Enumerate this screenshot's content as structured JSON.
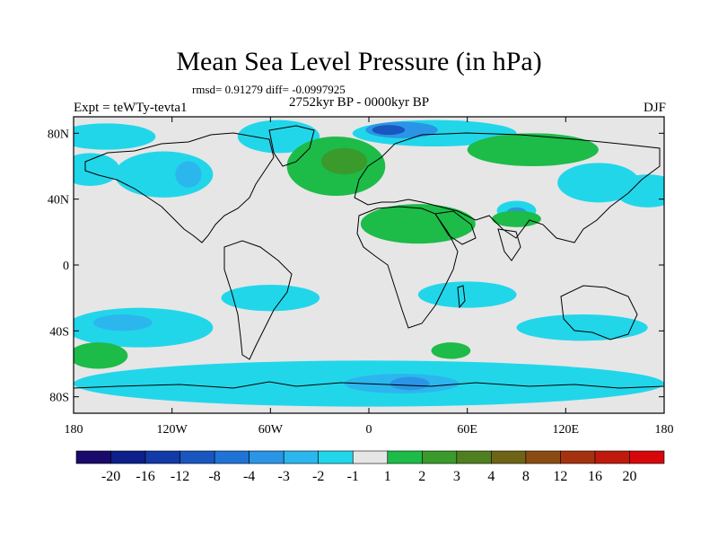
{
  "title": "Mean Sea Level Pressure (in hPa)",
  "stats": "rmsd= 0.91279 diff= -0.0997925",
  "period": "2752kyr BP - 0000kyr BP",
  "experiment": "Expt = teWTy-tevta1",
  "season": "DJF",
  "lat_ticks": [
    {
      "label": "80N",
      "lat": 80
    },
    {
      "label": "40N",
      "lat": 40
    },
    {
      "label": "0",
      "lat": 0
    },
    {
      "label": "40S",
      "lat": -40
    },
    {
      "label": "80S",
      "lat": -80
    }
  ],
  "lon_ticks": [
    {
      "label": "180",
      "lon": -180
    },
    {
      "label": "120W",
      "lon": -120
    },
    {
      "label": "60W",
      "lon": -60
    },
    {
      "label": "0",
      "lon": 0
    },
    {
      "label": "60E",
      "lon": 60
    },
    {
      "label": "120E",
      "lon": 120
    },
    {
      "label": "180",
      "lon": 180
    }
  ],
  "colorbar": {
    "colors": [
      "#1a0a6b",
      "#0d1f8a",
      "#123aa8",
      "#1a56c0",
      "#1f73d6",
      "#2a95e6",
      "#2cb6ee",
      "#22d6ea",
      "#e6e6e6",
      "#1dbb48",
      "#3a9a2c",
      "#4f7f1f",
      "#6e6416",
      "#8a4c12",
      "#a5320f",
      "#bf1a0c",
      "#d6080a"
    ],
    "labels": [
      "-20",
      "-16",
      "-12",
      "-8",
      "-4",
      "-3",
      "-2",
      "-1",
      "1",
      "2",
      "3",
      "4",
      "8",
      "12",
      "16",
      "20"
    ]
  },
  "field_regions": [
    {
      "level": "-1",
      "lon": -160,
      "lat": 78,
      "rx": 30,
      "ry": 8
    },
    {
      "level": "-1",
      "lon": -170,
      "lat": 58,
      "rx": 18,
      "ry": 10
    },
    {
      "level": "-1",
      "lon": -125,
      "lat": 55,
      "rx": 30,
      "ry": 14
    },
    {
      "level": "-2",
      "lon": -110,
      "lat": 55,
      "rx": 8,
      "ry": 8
    },
    {
      "level": "-1",
      "lon": -55,
      "lat": 78,
      "rx": 25,
      "ry": 10
    },
    {
      "level": "-1",
      "lon": 40,
      "lat": 80,
      "rx": 50,
      "ry": 8
    },
    {
      "level": "-3",
      "lon": 20,
      "lat": 82,
      "rx": 22,
      "ry": 5
    },
    {
      "level": "-8",
      "lon": 12,
      "lat": 82,
      "rx": 10,
      "ry": 3
    },
    {
      "level": "-1",
      "lon": 140,
      "lat": 50,
      "rx": 25,
      "ry": 12
    },
    {
      "level": "-1",
      "lon": 170,
      "lat": 45,
      "rx": 20,
      "ry": 10
    },
    {
      "level": "-1",
      "lon": 90,
      "lat": 33,
      "rx": 12,
      "ry": 6
    },
    {
      "level": "-3",
      "lon": 90,
      "lat": 32,
      "rx": 6,
      "ry": 3
    },
    {
      "level": "-1",
      "lon": -140,
      "lat": -38,
      "rx": 45,
      "ry": 12
    },
    {
      "level": "-2",
      "lon": -150,
      "lat": -35,
      "rx": 18,
      "ry": 5
    },
    {
      "level": "-1",
      "lon": -60,
      "lat": -20,
      "rx": 30,
      "ry": 8
    },
    {
      "level": "-1",
      "lon": 60,
      "lat": -18,
      "rx": 30,
      "ry": 8
    },
    {
      "level": "-1",
      "lon": 130,
      "lat": -38,
      "rx": 40,
      "ry": 8
    },
    {
      "level": "-1",
      "lon": 0,
      "lat": -72,
      "rx": 180,
      "ry": 14
    },
    {
      "level": "-2",
      "lon": 20,
      "lat": -72,
      "rx": 35,
      "ry": 6
    },
    {
      "level": "-3",
      "lon": 25,
      "lat": -72,
      "rx": 12,
      "ry": 4
    },
    {
      "level": "2",
      "lon": -20,
      "lat": 60,
      "rx": 30,
      "ry": 18
    },
    {
      "level": "3",
      "lon": -15,
      "lat": 63,
      "rx": 14,
      "ry": 8
    },
    {
      "level": "2",
      "lon": 100,
      "lat": 70,
      "rx": 40,
      "ry": 10
    },
    {
      "level": "2",
      "lon": 30,
      "lat": 25,
      "rx": 35,
      "ry": 12
    },
    {
      "level": "2",
      "lon": 90,
      "lat": 28,
      "rx": 15,
      "ry": 5
    },
    {
      "level": "2",
      "lon": -165,
      "lat": -55,
      "rx": 18,
      "ry": 8
    },
    {
      "level": "2",
      "lon": 50,
      "lat": -52,
      "rx": 12,
      "ry": 5
    }
  ]
}
